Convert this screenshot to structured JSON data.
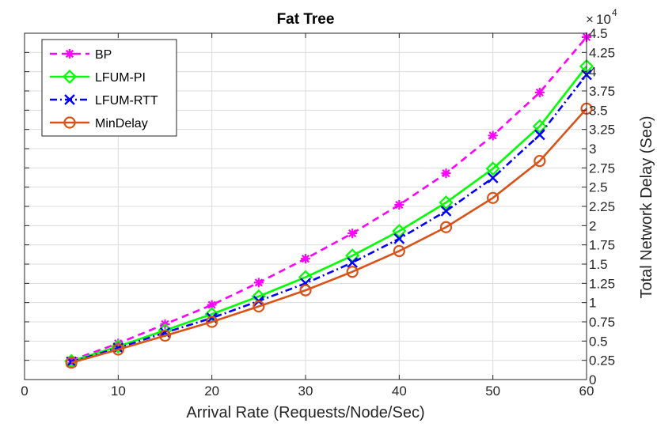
{
  "chart_data": {
    "type": "line",
    "title": "Fat Tree",
    "xlabel": "Arrival Rate (Requests/Node/Sec)",
    "ylabel": "Total Network Delay (Sec)",
    "y_axis_side": "right",
    "y_multiplier": {
      "times": "×",
      "base": "10",
      "exponent": "4"
    },
    "xlim": [
      0,
      60
    ],
    "ylim": [
      0,
      4.5
    ],
    "x_ticks": [
      0,
      10,
      20,
      30,
      40,
      50,
      60
    ],
    "x_tick_labels": [
      "0",
      "10",
      "20",
      "30",
      "40",
      "50",
      "60"
    ],
    "y_ticks": [
      0,
      0.25,
      0.5,
      0.75,
      1,
      1.25,
      1.5,
      1.75,
      2,
      2.25,
      2.5,
      2.75,
      3,
      3.25,
      3.5,
      3.75,
      4,
      4.25,
      4.5
    ],
    "y_tick_labels": [
      "0",
      "0.25",
      "0.5",
      "0.75",
      "1",
      "1.25",
      "1.5",
      "1.75",
      "2",
      "2.25",
      "2.5",
      "2.75",
      "3",
      "3.25",
      "3.5",
      "3.75",
      "4",
      "4.25",
      "4.5"
    ],
    "grid": true,
    "legend_position": "top-left",
    "x": [
      5,
      10,
      15,
      20,
      25,
      30,
      35,
      40,
      45,
      50,
      55,
      60
    ],
    "series": [
      {
        "name": "BP",
        "color": "#ff00ff",
        "dash": "dashed",
        "marker": "asterisk",
        "values": [
          0.25,
          0.47,
          0.72,
          0.97,
          1.26,
          1.57,
          1.9,
          2.27,
          2.68,
          3.17,
          3.73,
          4.45
        ]
      },
      {
        "name": "LFUM-PI",
        "color": "#00ff00",
        "dash": "solid",
        "marker": "diamond",
        "values": [
          0.24,
          0.43,
          0.64,
          0.85,
          1.08,
          1.33,
          1.61,
          1.93,
          2.3,
          2.74,
          3.29,
          4.07
        ]
      },
      {
        "name": "LFUM-RTT",
        "color": "#0000ff",
        "dash": "dashdot",
        "marker": "x",
        "values": [
          0.23,
          0.41,
          0.61,
          0.8,
          1.02,
          1.25,
          1.52,
          1.83,
          2.19,
          2.62,
          3.18,
          3.96
        ]
      },
      {
        "name": "MinDelay",
        "color": "#d95319",
        "dash": "solid",
        "marker": "circle",
        "values": [
          0.22,
          0.39,
          0.57,
          0.75,
          0.95,
          1.16,
          1.4,
          1.67,
          1.98,
          2.36,
          2.84,
          3.52
        ]
      }
    ]
  }
}
